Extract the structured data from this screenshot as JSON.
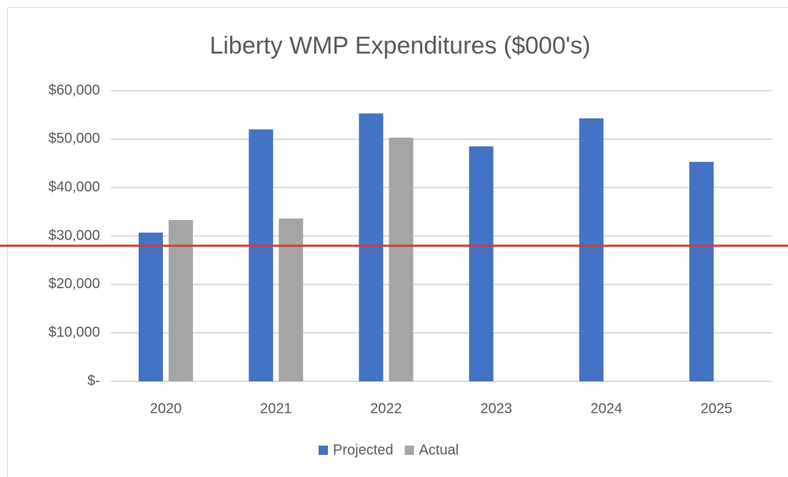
{
  "chart_data": {
    "type": "bar",
    "title": "Liberty WMP Expenditures ($000's)",
    "categories": [
      "2020",
      "2021",
      "2022",
      "2023",
      "2024",
      "2025"
    ],
    "series": [
      {
        "name": "Projected",
        "color": "#4472c4",
        "values": [
          30700,
          52000,
          55300,
          48500,
          54300,
          45300
        ]
      },
      {
        "name": "Actual",
        "color": "#a5a5a5",
        "values": [
          33300,
          33600,
          50300,
          null,
          null,
          null
        ]
      }
    ],
    "ylim": [
      0,
      60000
    ],
    "yticks": [
      {
        "value": 0,
        "label": "$-"
      },
      {
        "value": 10000,
        "label": "$10,000"
      },
      {
        "value": 20000,
        "label": "$20,000"
      },
      {
        "value": 30000,
        "label": "$30,000"
      },
      {
        "value": 40000,
        "label": "$40,000"
      },
      {
        "value": 50000,
        "label": "$50,000"
      },
      {
        "value": 60000,
        "label": "$60,000"
      }
    ],
    "grid": true,
    "legend": "bottom",
    "reference_line": {
      "value": 28000,
      "color": "#d13b38"
    }
  }
}
